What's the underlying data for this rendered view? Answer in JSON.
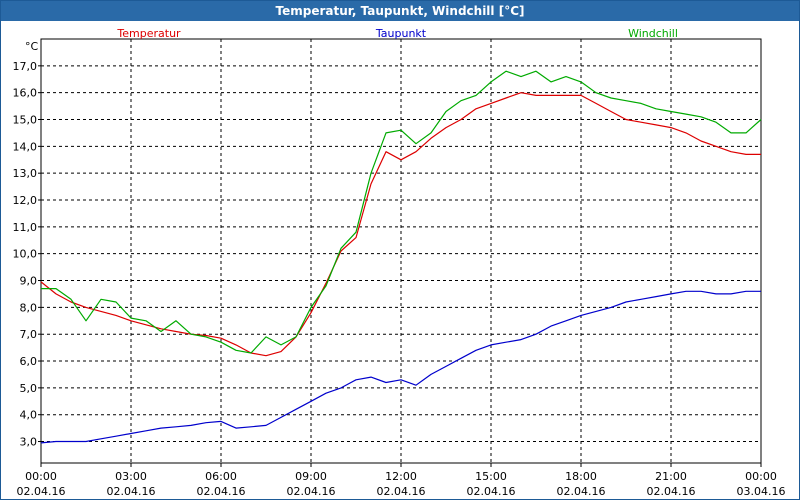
{
  "window": {
    "title": "Temperatur, Taupunkt, Windchill [°C]"
  },
  "chart_data": {
    "type": "line",
    "title": "Temperatur, Taupunkt, Windchill [°C]",
    "ylabel": "°C",
    "xlabel": "",
    "ylim": [
      2.2,
      18.0
    ],
    "xlim": [
      "02.04.16 00:00",
      "03.04.16 00:00"
    ],
    "grid": true,
    "legend": "top",
    "y_ticks": [
      "3,0",
      "4,0",
      "5,0",
      "6,0",
      "7,0",
      "8,0",
      "9,0",
      "10,0",
      "11,0",
      "12,0",
      "13,0",
      "14,0",
      "15,0",
      "16,0",
      "17,0"
    ],
    "x_ticks": [
      {
        "time": "00:00",
        "date": "02.04.16"
      },
      {
        "time": "03:00",
        "date": "02.04.16"
      },
      {
        "time": "06:00",
        "date": "02.04.16"
      },
      {
        "time": "09:00",
        "date": "02.04.16"
      },
      {
        "time": "12:00",
        "date": "02.04.16"
      },
      {
        "time": "15:00",
        "date": "02.04.16"
      },
      {
        "time": "18:00",
        "date": "02.04.16"
      },
      {
        "time": "21:00",
        "date": "02.04.16"
      },
      {
        "time": "00:00",
        "date": "03.04.16"
      }
    ],
    "x": [
      "00:00",
      "00:30",
      "01:00",
      "01:30",
      "02:00",
      "02:30",
      "03:00",
      "03:30",
      "04:00",
      "04:30",
      "05:00",
      "05:30",
      "06:00",
      "06:30",
      "07:00",
      "07:30",
      "08:00",
      "08:30",
      "09:00",
      "09:30",
      "10:00",
      "10:30",
      "11:00",
      "11:30",
      "12:00",
      "12:30",
      "13:00",
      "13:30",
      "14:00",
      "14:30",
      "15:00",
      "15:30",
      "16:00",
      "16:30",
      "17:00",
      "17:30",
      "18:00",
      "18:30",
      "19:00",
      "19:30",
      "20:00",
      "20:30",
      "21:00",
      "21:30",
      "22:00",
      "22:30",
      "23:00",
      "23:30",
      "24:00"
    ],
    "series": [
      {
        "name": "Temperatur",
        "color": "#dd0000",
        "values": [
          8.95,
          8.5,
          8.2,
          8.0,
          7.85,
          7.7,
          7.5,
          7.35,
          7.2,
          7.1,
          7.0,
          6.95,
          6.85,
          6.6,
          6.3,
          6.2,
          6.35,
          6.9,
          7.8,
          8.9,
          10.1,
          10.6,
          12.6,
          13.8,
          13.5,
          13.8,
          14.3,
          14.7,
          15.0,
          15.4,
          15.6,
          15.8,
          16.0,
          15.9,
          15.9,
          15.9,
          15.9,
          15.6,
          15.3,
          15.0,
          14.9,
          14.8,
          14.7,
          14.5,
          14.2,
          14.0,
          13.8,
          13.7,
          13.7
        ]
      },
      {
        "name": "Taupunkt",
        "color": "#0000cc",
        "values": [
          2.95,
          3.0,
          3.0,
          3.0,
          3.1,
          3.2,
          3.3,
          3.4,
          3.5,
          3.55,
          3.6,
          3.7,
          3.75,
          3.5,
          3.55,
          3.6,
          3.9,
          4.2,
          4.5,
          4.8,
          5.0,
          5.3,
          5.4,
          5.2,
          5.3,
          5.1,
          5.5,
          5.8,
          6.1,
          6.4,
          6.6,
          6.7,
          6.8,
          7.0,
          7.3,
          7.5,
          7.7,
          7.85,
          8.0,
          8.2,
          8.3,
          8.4,
          8.5,
          8.6,
          8.6,
          8.5,
          8.5,
          8.6,
          8.6
        ]
      },
      {
        "name": "Windchill",
        "color": "#00aa00",
        "values": [
          8.7,
          8.7,
          8.3,
          7.5,
          8.3,
          8.2,
          7.6,
          7.5,
          7.1,
          7.5,
          7.0,
          6.9,
          6.7,
          6.4,
          6.3,
          6.9,
          6.6,
          6.9,
          8.0,
          8.8,
          10.2,
          10.8,
          13.0,
          14.5,
          14.6,
          14.1,
          14.5,
          15.3,
          15.7,
          15.9,
          16.4,
          16.8,
          16.6,
          16.8,
          16.4,
          16.6,
          16.4,
          16.0,
          15.8,
          15.7,
          15.6,
          15.4,
          15.3,
          15.2,
          15.1,
          14.9,
          14.5,
          14.5,
          15.0
        ]
      }
    ]
  }
}
